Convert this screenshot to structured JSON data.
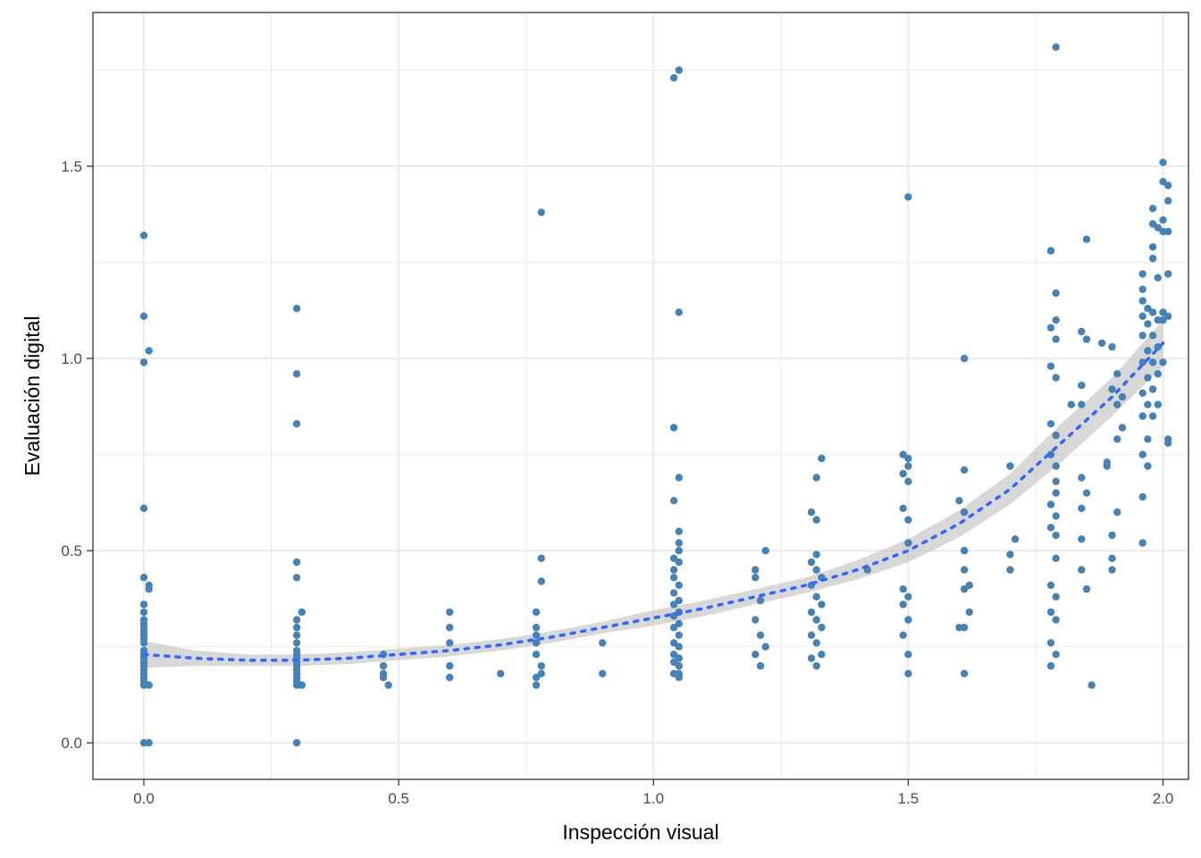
{
  "chart_data": {
    "type": "scatter",
    "xlabel": "Inspección visual",
    "ylabel": "Evaluación digital",
    "xlim": [
      -0.1,
      2.05
    ],
    "ylim": [
      -0.095,
      1.9
    ],
    "x_ticks": [
      0.0,
      0.5,
      1.0,
      1.5,
      2.0
    ],
    "x_tick_labels": [
      "0.0",
      "0.5",
      "1.0",
      "1.5",
      "2.0"
    ],
    "y_ticks": [
      0.0,
      0.5,
      1.0,
      1.5
    ],
    "y_tick_labels": [
      "0.0",
      "0.5",
      "1.0",
      "1.5"
    ],
    "grid": true,
    "legend": "none",
    "colors": {
      "points": "#4682b4",
      "trend_line": "#3366ff",
      "confidence_band": "#bebebe",
      "grid": "#ebebeb",
      "panel_border": "#333333"
    },
    "points": [
      [
        0.0,
        1.32
      ],
      [
        0.0,
        1.11
      ],
      [
        0.01,
        1.02
      ],
      [
        0.0,
        0.99
      ],
      [
        0.0,
        0.61
      ],
      [
        0.0,
        0.43
      ],
      [
        0.01,
        0.41
      ],
      [
        0.01,
        0.4
      ],
      [
        0.0,
        0.36
      ],
      [
        0.0,
        0.34
      ],
      [
        0.0,
        0.32
      ],
      [
        0.0,
        0.31
      ],
      [
        0.0,
        0.3
      ],
      [
        0.0,
        0.29
      ],
      [
        0.0,
        0.28
      ],
      [
        0.0,
        0.27
      ],
      [
        0.0,
        0.26
      ],
      [
        0.0,
        0.24
      ],
      [
        0.0,
        0.23
      ],
      [
        0.0,
        0.22
      ],
      [
        0.0,
        0.21
      ],
      [
        0.0,
        0.2
      ],
      [
        0.0,
        0.19
      ],
      [
        0.0,
        0.18
      ],
      [
        0.0,
        0.17
      ],
      [
        0.0,
        0.16
      ],
      [
        0.0,
        0.15
      ],
      [
        0.01,
        0.15
      ],
      [
        0.0,
        0.0
      ],
      [
        0.01,
        0.0
      ],
      [
        0.3,
        1.13
      ],
      [
        0.3,
        0.96
      ],
      [
        0.3,
        0.83
      ],
      [
        0.3,
        0.47
      ],
      [
        0.3,
        0.43
      ],
      [
        0.31,
        0.34
      ],
      [
        0.3,
        0.32
      ],
      [
        0.3,
        0.3
      ],
      [
        0.3,
        0.28
      ],
      [
        0.3,
        0.26
      ],
      [
        0.3,
        0.24
      ],
      [
        0.3,
        0.23
      ],
      [
        0.3,
        0.22
      ],
      [
        0.3,
        0.21
      ],
      [
        0.3,
        0.2
      ],
      [
        0.3,
        0.19
      ],
      [
        0.3,
        0.18
      ],
      [
        0.3,
        0.17
      ],
      [
        0.3,
        0.16
      ],
      [
        0.3,
        0.15
      ],
      [
        0.31,
        0.15
      ],
      [
        0.3,
        0.0
      ],
      [
        0.47,
        0.23
      ],
      [
        0.47,
        0.2
      ],
      [
        0.47,
        0.18
      ],
      [
        0.47,
        0.17
      ],
      [
        0.48,
        0.15
      ],
      [
        0.6,
        0.34
      ],
      [
        0.6,
        0.3
      ],
      [
        0.6,
        0.26
      ],
      [
        0.6,
        0.2
      ],
      [
        0.6,
        0.17
      ],
      [
        0.7,
        0.18
      ],
      [
        0.78,
        1.38
      ],
      [
        0.78,
        0.48
      ],
      [
        0.78,
        0.42
      ],
      [
        0.77,
        0.34
      ],
      [
        0.77,
        0.3
      ],
      [
        0.77,
        0.28
      ],
      [
        0.77,
        0.26
      ],
      [
        0.77,
        0.23
      ],
      [
        0.78,
        0.2
      ],
      [
        0.78,
        0.18
      ],
      [
        0.77,
        0.17
      ],
      [
        0.77,
        0.15
      ],
      [
        0.9,
        0.26
      ],
      [
        0.9,
        0.18
      ],
      [
        1.04,
        1.73
      ],
      [
        1.05,
        1.75
      ],
      [
        1.05,
        1.12
      ],
      [
        1.04,
        0.82
      ],
      [
        1.05,
        0.69
      ],
      [
        1.04,
        0.63
      ],
      [
        1.05,
        0.55
      ],
      [
        1.05,
        0.52
      ],
      [
        1.05,
        0.5
      ],
      [
        1.04,
        0.48
      ],
      [
        1.05,
        0.47
      ],
      [
        1.04,
        0.45
      ],
      [
        1.04,
        0.43
      ],
      [
        1.05,
        0.41
      ],
      [
        1.04,
        0.39
      ],
      [
        1.05,
        0.37
      ],
      [
        1.04,
        0.36
      ],
      [
        1.05,
        0.34
      ],
      [
        1.04,
        0.33
      ],
      [
        1.05,
        0.31
      ],
      [
        1.04,
        0.3
      ],
      [
        1.05,
        0.28
      ],
      [
        1.04,
        0.26
      ],
      [
        1.05,
        0.25
      ],
      [
        1.04,
        0.23
      ],
      [
        1.05,
        0.22
      ],
      [
        1.04,
        0.21
      ],
      [
        1.05,
        0.2
      ],
      [
        1.04,
        0.18
      ],
      [
        1.05,
        0.17
      ],
      [
        1.05,
        0.18
      ],
      [
        1.2,
        0.45
      ],
      [
        1.22,
        0.5
      ],
      [
        1.2,
        0.43
      ],
      [
        1.21,
        0.37
      ],
      [
        1.2,
        0.32
      ],
      [
        1.21,
        0.28
      ],
      [
        1.22,
        0.25
      ],
      [
        1.2,
        0.23
      ],
      [
        1.21,
        0.2
      ],
      [
        1.33,
        0.74
      ],
      [
        1.32,
        0.69
      ],
      [
        1.31,
        0.6
      ],
      [
        1.32,
        0.58
      ],
      [
        1.32,
        0.49
      ],
      [
        1.31,
        0.47
      ],
      [
        1.32,
        0.45
      ],
      [
        1.33,
        0.43
      ],
      [
        1.31,
        0.41
      ],
      [
        1.32,
        0.38
      ],
      [
        1.33,
        0.36
      ],
      [
        1.31,
        0.34
      ],
      [
        1.32,
        0.32
      ],
      [
        1.33,
        0.3
      ],
      [
        1.31,
        0.28
      ],
      [
        1.32,
        0.26
      ],
      [
        1.33,
        0.23
      ],
      [
        1.31,
        0.22
      ],
      [
        1.32,
        0.2
      ],
      [
        1.42,
        0.45
      ],
      [
        1.5,
        1.42
      ],
      [
        1.49,
        0.75
      ],
      [
        1.5,
        0.74
      ],
      [
        1.5,
        0.72
      ],
      [
        1.49,
        0.7
      ],
      [
        1.5,
        0.68
      ],
      [
        1.49,
        0.61
      ],
      [
        1.5,
        0.58
      ],
      [
        1.5,
        0.52
      ],
      [
        1.49,
        0.4
      ],
      [
        1.5,
        0.38
      ],
      [
        1.49,
        0.36
      ],
      [
        1.5,
        0.32
      ],
      [
        1.49,
        0.28
      ],
      [
        1.5,
        0.23
      ],
      [
        1.5,
        0.18
      ],
      [
        1.61,
        1.0
      ],
      [
        1.61,
        0.71
      ],
      [
        1.6,
        0.63
      ],
      [
        1.61,
        0.6
      ],
      [
        1.61,
        0.5
      ],
      [
        1.61,
        0.45
      ],
      [
        1.62,
        0.41
      ],
      [
        1.61,
        0.4
      ],
      [
        1.62,
        0.34
      ],
      [
        1.61,
        0.3
      ],
      [
        1.6,
        0.3
      ],
      [
        1.61,
        0.18
      ],
      [
        1.7,
        0.72
      ],
      [
        1.71,
        0.53
      ],
      [
        1.7,
        0.49
      ],
      [
        1.7,
        0.45
      ],
      [
        1.79,
        1.81
      ],
      [
        1.78,
        1.28
      ],
      [
        1.79,
        1.17
      ],
      [
        1.79,
        1.1
      ],
      [
        1.78,
        1.08
      ],
      [
        1.79,
        1.05
      ],
      [
        1.78,
        0.98
      ],
      [
        1.79,
        0.95
      ],
      [
        1.78,
        0.83
      ],
      [
        1.79,
        0.8
      ],
      [
        1.78,
        0.75
      ],
      [
        1.79,
        0.72
      ],
      [
        1.79,
        0.68
      ],
      [
        1.79,
        0.65
      ],
      [
        1.78,
        0.62
      ],
      [
        1.79,
        0.59
      ],
      [
        1.78,
        0.56
      ],
      [
        1.79,
        0.54
      ],
      [
        1.79,
        0.48
      ],
      [
        1.78,
        0.41
      ],
      [
        1.79,
        0.38
      ],
      [
        1.78,
        0.34
      ],
      [
        1.79,
        0.32
      ],
      [
        1.78,
        0.26
      ],
      [
        1.79,
        0.23
      ],
      [
        1.78,
        0.2
      ],
      [
        1.85,
        1.31
      ],
      [
        1.84,
        1.07
      ],
      [
        1.85,
        1.05
      ],
      [
        1.84,
        0.93
      ],
      [
        1.84,
        0.88
      ],
      [
        1.84,
        0.69
      ],
      [
        1.85,
        0.65
      ],
      [
        1.84,
        0.61
      ],
      [
        1.84,
        0.53
      ],
      [
        1.85,
        0.4
      ],
      [
        1.84,
        0.45
      ],
      [
        1.86,
        0.15
      ],
      [
        1.82,
        0.88
      ],
      [
        1.88,
        1.04
      ],
      [
        1.9,
        1.03
      ],
      [
        1.89,
        0.73
      ],
      [
        1.89,
        0.72
      ],
      [
        1.9,
        0.54
      ],
      [
        1.91,
        0.6
      ],
      [
        1.9,
        0.48
      ],
      [
        1.9,
        0.45
      ],
      [
        1.91,
        0.96
      ],
      [
        1.9,
        0.92
      ],
      [
        1.91,
        0.88
      ],
      [
        1.92,
        0.82
      ],
      [
        1.91,
        0.79
      ],
      [
        1.92,
        0.9
      ],
      [
        1.96,
        1.22
      ],
      [
        1.96,
        1.18
      ],
      [
        1.96,
        1.15
      ],
      [
        1.97,
        1.13
      ],
      [
        1.96,
        1.11
      ],
      [
        1.97,
        1.09
      ],
      [
        1.96,
        1.06
      ],
      [
        1.97,
        1.02
      ],
      [
        1.96,
        0.99
      ],
      [
        1.97,
        0.95
      ],
      [
        1.96,
        0.91
      ],
      [
        1.97,
        0.88
      ],
      [
        1.96,
        0.85
      ],
      [
        1.97,
        0.79
      ],
      [
        1.96,
        0.75
      ],
      [
        1.97,
        0.72
      ],
      [
        1.96,
        0.64
      ],
      [
        1.96,
        0.52
      ],
      [
        1.98,
        1.39
      ],
      [
        1.98,
        1.35
      ],
      [
        1.98,
        1.29
      ],
      [
        1.99,
        1.34
      ],
      [
        1.98,
        1.26
      ],
      [
        1.99,
        1.21
      ],
      [
        1.98,
        1.12
      ],
      [
        1.99,
        1.1
      ],
      [
        1.98,
        1.06
      ],
      [
        1.99,
        1.03
      ],
      [
        1.98,
        0.99
      ],
      [
        1.99,
        0.96
      ],
      [
        1.98,
        0.92
      ],
      [
        1.99,
        0.88
      ],
      [
        1.98,
        0.85
      ],
      [
        2.0,
        1.51
      ],
      [
        2.0,
        1.46
      ],
      [
        2.01,
        1.45
      ],
      [
        2.01,
        1.41
      ],
      [
        2.0,
        1.36
      ],
      [
        2.0,
        1.33
      ],
      [
        2.01,
        1.33
      ],
      [
        2.01,
        1.22
      ],
      [
        2.0,
        1.12
      ],
      [
        2.01,
        1.11
      ],
      [
        2.0,
        1.1
      ],
      [
        2.0,
        0.99
      ],
      [
        2.01,
        0.79
      ],
      [
        2.01,
        0.78
      ]
    ],
    "trend": {
      "x": [
        0.0,
        0.1,
        0.2,
        0.3,
        0.4,
        0.5,
        0.6,
        0.7,
        0.8,
        0.9,
        1.0,
        1.1,
        1.2,
        1.3,
        1.4,
        1.5,
        1.6,
        1.7,
        1.8,
        1.9,
        2.0
      ],
      "y": [
        0.23,
        0.22,
        0.215,
        0.215,
        0.22,
        0.23,
        0.24,
        0.255,
        0.275,
        0.3,
        0.325,
        0.35,
        0.38,
        0.41,
        0.45,
        0.5,
        0.57,
        0.66,
        0.78,
        0.9,
        1.04
      ],
      "lower": [
        0.195,
        0.2,
        0.2,
        0.2,
        0.205,
        0.215,
        0.225,
        0.24,
        0.26,
        0.285,
        0.305,
        0.33,
        0.36,
        0.39,
        0.425,
        0.47,
        0.535,
        0.62,
        0.73,
        0.85,
        0.98
      ],
      "upper": [
        0.265,
        0.24,
        0.23,
        0.23,
        0.235,
        0.245,
        0.255,
        0.27,
        0.29,
        0.315,
        0.345,
        0.37,
        0.4,
        0.43,
        0.475,
        0.53,
        0.605,
        0.7,
        0.83,
        0.95,
        1.1
      ]
    }
  }
}
